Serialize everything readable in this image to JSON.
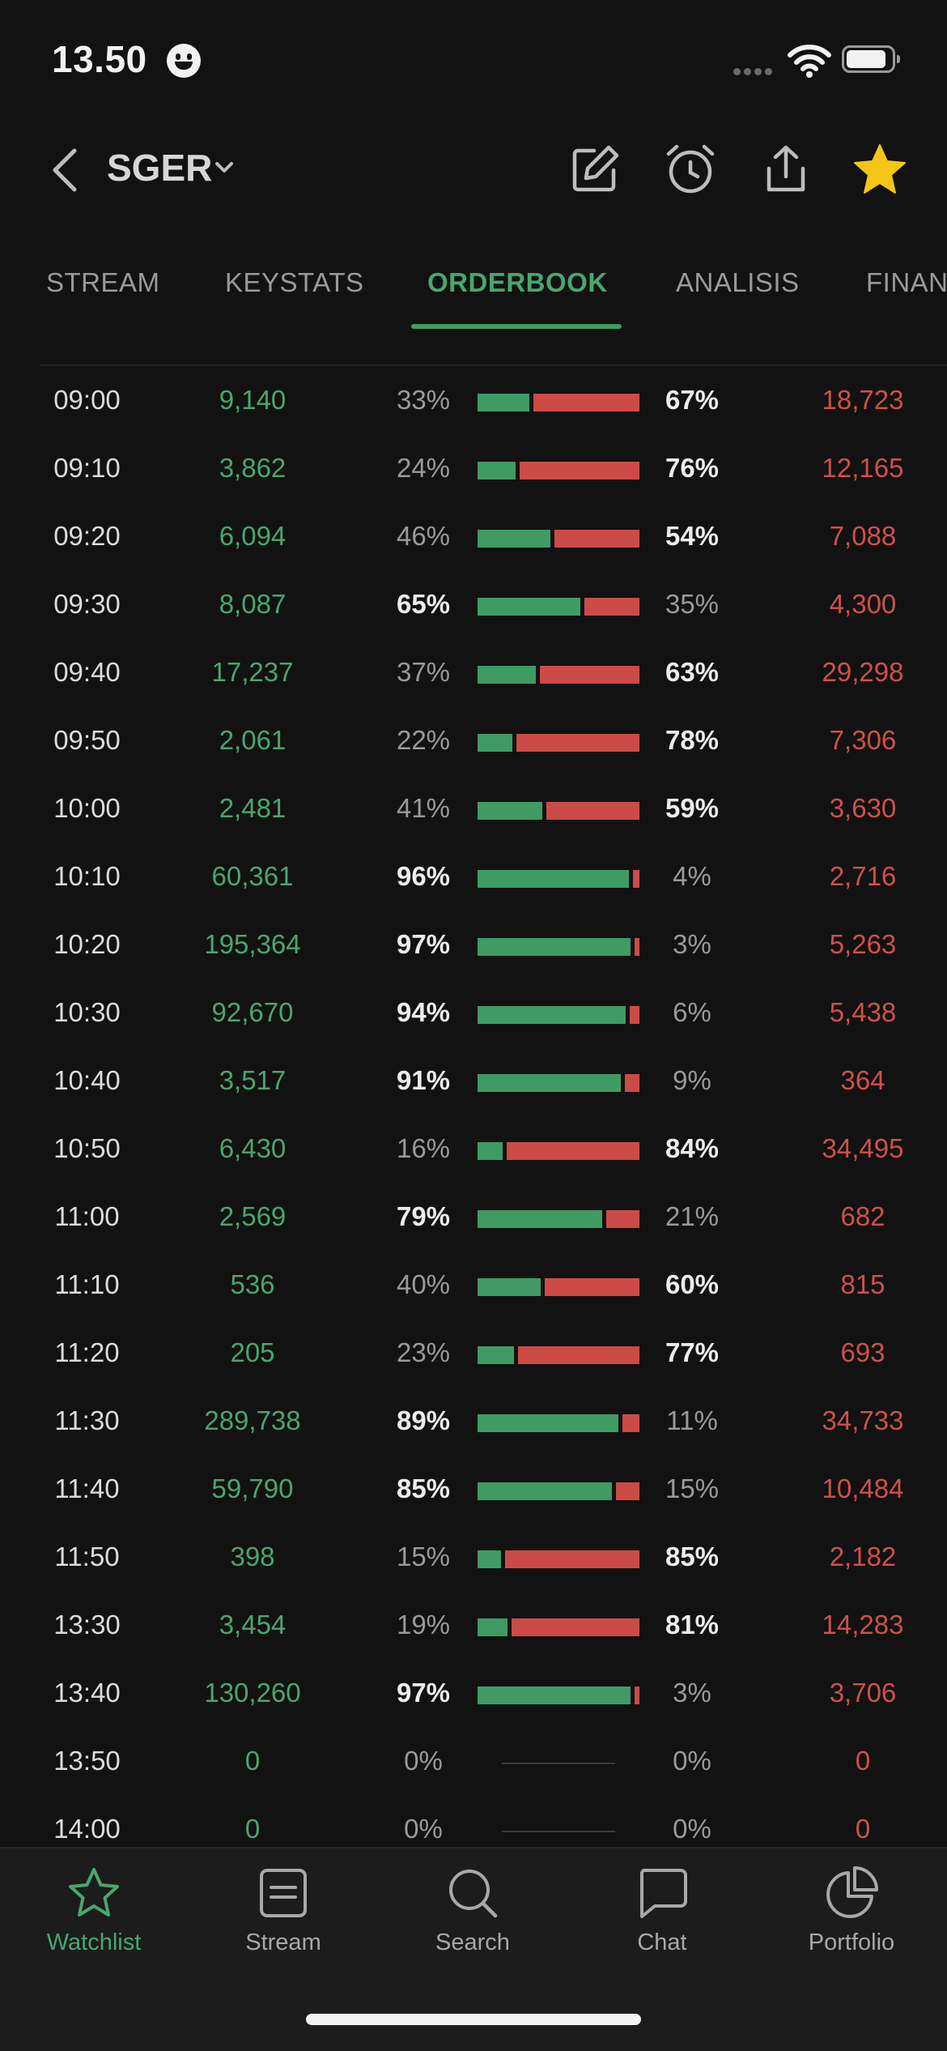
{
  "status_bar": {
    "time": "13.50"
  },
  "header": {
    "ticker": "SGER"
  },
  "tabs": [
    {
      "label": "STREAM",
      "active": false
    },
    {
      "label": "KEYSTATS",
      "active": false
    },
    {
      "label": "ORDERBOOK",
      "active": true
    },
    {
      "label": "ANALISIS",
      "active": false
    },
    {
      "label": "FINAN",
      "active": false
    }
  ],
  "orderbook": [
    {
      "time": "09:00",
      "buy_vol": "9,140",
      "buy_pct": 33,
      "sell_pct": 67,
      "sell_vol": "18,723"
    },
    {
      "time": "09:10",
      "buy_vol": "3,862",
      "buy_pct": 24,
      "sell_pct": 76,
      "sell_vol": "12,165"
    },
    {
      "time": "09:20",
      "buy_vol": "6,094",
      "buy_pct": 46,
      "sell_pct": 54,
      "sell_vol": "7,088"
    },
    {
      "time": "09:30",
      "buy_vol": "8,087",
      "buy_pct": 65,
      "sell_pct": 35,
      "sell_vol": "4,300"
    },
    {
      "time": "09:40",
      "buy_vol": "17,237",
      "buy_pct": 37,
      "sell_pct": 63,
      "sell_vol": "29,298"
    },
    {
      "time": "09:50",
      "buy_vol": "2,061",
      "buy_pct": 22,
      "sell_pct": 78,
      "sell_vol": "7,306"
    },
    {
      "time": "10:00",
      "buy_vol": "2,481",
      "buy_pct": 41,
      "sell_pct": 59,
      "sell_vol": "3,630"
    },
    {
      "time": "10:10",
      "buy_vol": "60,361",
      "buy_pct": 96,
      "sell_pct": 4,
      "sell_vol": "2,716"
    },
    {
      "time": "10:20",
      "buy_vol": "195,364",
      "buy_pct": 97,
      "sell_pct": 3,
      "sell_vol": "5,263"
    },
    {
      "time": "10:30",
      "buy_vol": "92,670",
      "buy_pct": 94,
      "sell_pct": 6,
      "sell_vol": "5,438"
    },
    {
      "time": "10:40",
      "buy_vol": "3,517",
      "buy_pct": 91,
      "sell_pct": 9,
      "sell_vol": "364"
    },
    {
      "time": "10:50",
      "buy_vol": "6,430",
      "buy_pct": 16,
      "sell_pct": 84,
      "sell_vol": "34,495"
    },
    {
      "time": "11:00",
      "buy_vol": "2,569",
      "buy_pct": 79,
      "sell_pct": 21,
      "sell_vol": "682"
    },
    {
      "time": "11:10",
      "buy_vol": "536",
      "buy_pct": 40,
      "sell_pct": 60,
      "sell_vol": "815"
    },
    {
      "time": "11:20",
      "buy_vol": "205",
      "buy_pct": 23,
      "sell_pct": 77,
      "sell_vol": "693"
    },
    {
      "time": "11:30",
      "buy_vol": "289,738",
      "buy_pct": 89,
      "sell_pct": 11,
      "sell_vol": "34,733"
    },
    {
      "time": "11:40",
      "buy_vol": "59,790",
      "buy_pct": 85,
      "sell_pct": 15,
      "sell_vol": "10,484"
    },
    {
      "time": "11:50",
      "buy_vol": "398",
      "buy_pct": 15,
      "sell_pct": 85,
      "sell_vol": "2,182"
    },
    {
      "time": "13:30",
      "buy_vol": "3,454",
      "buy_pct": 19,
      "sell_pct": 81,
      "sell_vol": "14,283"
    },
    {
      "time": "13:40",
      "buy_vol": "130,260",
      "buy_pct": 97,
      "sell_pct": 3,
      "sell_vol": "3,706"
    },
    {
      "time": "13:50",
      "buy_vol": "0",
      "buy_pct": 0,
      "sell_pct": 0,
      "sell_vol": "0"
    },
    {
      "time": "14:00",
      "buy_vol": "0",
      "buy_pct": 0,
      "sell_pct": 0,
      "sell_vol": "0"
    }
  ],
  "colors": {
    "buy": "#3f9b63",
    "sell": "#cc4b46",
    "accent": "#4aa66e",
    "star": "#f5c518"
  },
  "bottom_nav": [
    {
      "label": "Watchlist",
      "icon": "star-icon",
      "active": true
    },
    {
      "label": "Stream",
      "icon": "stream-icon",
      "active": false
    },
    {
      "label": "Search",
      "icon": "search-icon",
      "active": false
    },
    {
      "label": "Chat",
      "icon": "chat-icon",
      "active": false
    },
    {
      "label": "Portfolio",
      "icon": "pie-chart-icon",
      "active": false
    }
  ]
}
